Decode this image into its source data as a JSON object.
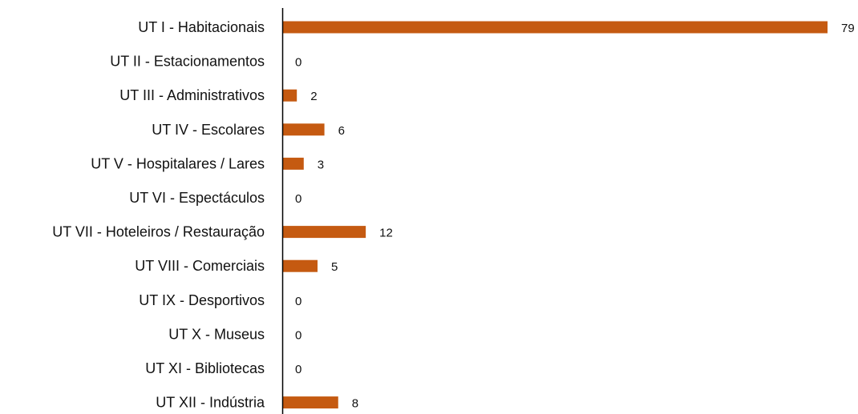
{
  "chart_data": {
    "type": "bar",
    "orientation": "horizontal",
    "categories": [
      "UT I - Habitacionais",
      "UT II - Estacionamentos",
      "UT III - Administrativos",
      "UT IV - Escolares",
      "UT V - Hospitalares / Lares",
      "UT VI - Espectáculos",
      "UT VII - Hoteleiros / Restauração",
      "UT VIII - Comerciais",
      "UT IX - Desportivos",
      "UT X - Museus",
      "UT XI - Bibliotecas",
      "UT XII - Indústria"
    ],
    "values": [
      79,
      0,
      2,
      6,
      3,
      0,
      12,
      5,
      0,
      0,
      0,
      8
    ],
    "title": "",
    "xlabel": "",
    "ylabel": "",
    "xlim": [
      0,
      79
    ],
    "grid": false,
    "legend": "none",
    "data_labels": true,
    "bar_color": "#C55A11",
    "axis_color": "#000000"
  }
}
